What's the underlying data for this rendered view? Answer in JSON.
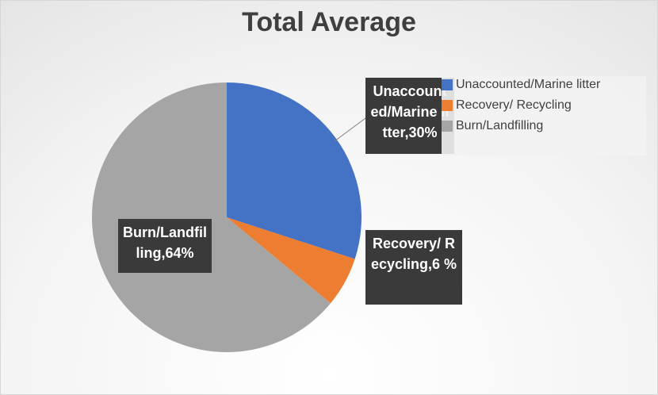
{
  "chart_data": {
    "type": "pie",
    "title": "Total Average",
    "slices": [
      {
        "name": "Unaccounted/Marine litter",
        "value": 30,
        "color": "#4472c4",
        "label_text": "Unaccounted/Marine litter,30%"
      },
      {
        "name": "Recovery/ Recycling",
        "value": 6,
        "color": "#ed7d31",
        "label_text": "Recovery/ Recycling,6 %"
      },
      {
        "name": "Burn/Landfilling",
        "value": 64,
        "color": "#a5a5a5",
        "label_text": "Burn/Landfilling,64%"
      }
    ],
    "legend_position": "top-right"
  }
}
